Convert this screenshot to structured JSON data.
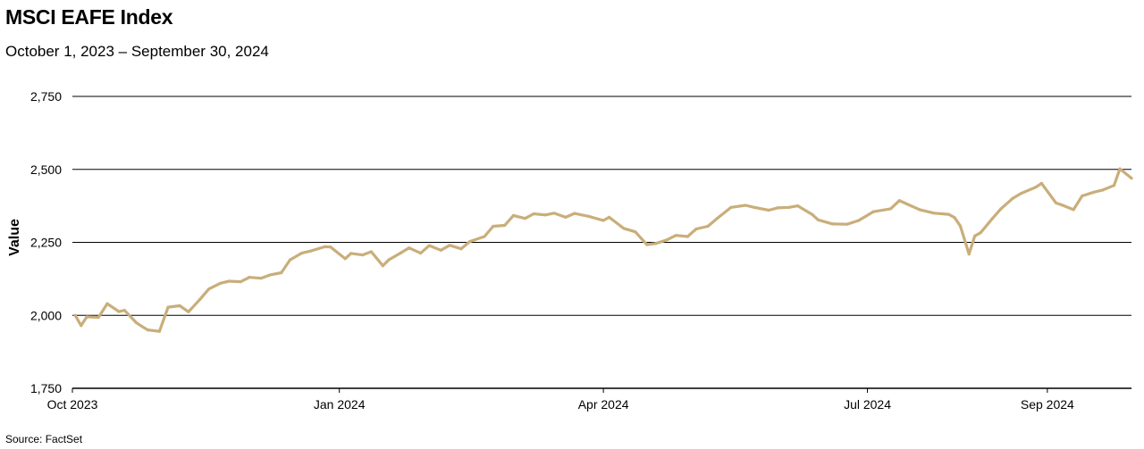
{
  "chart_data": {
    "type": "line",
    "title": "MSCI EAFE Index",
    "subtitle": "October 1, 2023 – September 30, 2024",
    "ylabel": "Value",
    "xlabel": "",
    "source": "Source: FactSet",
    "ylim": [
      1750,
      2750
    ],
    "y_ticks": [
      "1,750",
      "2,000",
      "2,250",
      "2,500",
      "2,750"
    ],
    "xlim": [
      "2023-10-01",
      "2024-09-30"
    ],
    "x_ticks": [
      {
        "date": "2023-10-01",
        "label": "Oct 2023"
      },
      {
        "date": "2024-01-01",
        "label": "Jan 2024"
      },
      {
        "date": "2024-04-01",
        "label": "Apr 2024"
      },
      {
        "date": "2024-07-01",
        "label": "Jul 2024"
      },
      {
        "date": "2024-09-01",
        "label": "Sep 2024"
      }
    ],
    "grid": "horizontal",
    "line_color": "#C9AE7A",
    "series": [
      {
        "x": [
          "2023-10-02",
          "2023-10-04",
          "2023-10-06",
          "2023-10-10",
          "2023-10-13",
          "2023-10-17",
          "2023-10-19",
          "2023-10-23",
          "2023-10-25",
          "2023-10-27",
          "2023-10-31",
          "2023-11-03",
          "2023-11-07",
          "2023-11-10",
          "2023-11-14",
          "2023-11-17",
          "2023-11-21",
          "2023-11-24",
          "2023-11-28",
          "2023-12-01",
          "2023-12-05",
          "2023-12-08",
          "2023-12-12",
          "2023-12-15",
          "2023-12-19",
          "2023-12-22",
          "2023-12-27",
          "2023-12-29",
          "2024-01-03",
          "2024-01-05",
          "2024-01-09",
          "2024-01-12",
          "2024-01-16",
          "2024-01-18",
          "2024-01-22",
          "2024-01-25",
          "2024-01-29",
          "2024-02-01",
          "2024-02-05",
          "2024-02-08",
          "2024-02-12",
          "2024-02-15",
          "2024-02-20",
          "2024-02-23",
          "2024-02-27",
          "2024-03-01",
          "2024-03-05",
          "2024-03-08",
          "2024-03-12",
          "2024-03-15",
          "2024-03-19",
          "2024-03-22",
          "2024-03-27",
          "2024-04-01",
          "2024-04-03",
          "2024-04-08",
          "2024-04-12",
          "2024-04-16",
          "2024-04-19",
          "2024-04-23",
          "2024-04-26",
          "2024-04-30",
          "2024-05-03",
          "2024-05-07",
          "2024-05-10",
          "2024-05-15",
          "2024-05-20",
          "2024-05-23",
          "2024-05-28",
          "2024-05-31",
          "2024-06-04",
          "2024-06-07",
          "2024-06-12",
          "2024-06-14",
          "2024-06-19",
          "2024-06-24",
          "2024-06-28",
          "2024-07-03",
          "2024-07-09",
          "2024-07-12",
          "2024-07-16",
          "2024-07-19",
          "2024-07-24",
          "2024-07-29",
          "2024-07-31",
          "2024-08-02",
          "2024-08-05",
          "2024-08-07",
          "2024-08-09",
          "2024-08-13",
          "2024-08-16",
          "2024-08-20",
          "2024-08-23",
          "2024-08-28",
          "2024-08-30",
          "2024-09-04",
          "2024-09-06",
          "2024-09-10",
          "2024-09-13",
          "2024-09-17",
          "2024-09-20",
          "2024-09-24",
          "2024-09-26",
          "2024-09-30"
        ],
        "values": [
          2000,
          1965,
          1995,
          1993,
          2040,
          2013,
          2017,
          1975,
          1962,
          1950,
          1945,
          2028,
          2033,
          2012,
          2055,
          2090,
          2110,
          2117,
          2115,
          2130,
          2127,
          2138,
          2146,
          2190,
          2213,
          2220,
          2235,
          2234,
          2194,
          2212,
          2207,
          2218,
          2170,
          2190,
          2213,
          2231,
          2213,
          2239,
          2223,
          2240,
          2228,
          2253,
          2270,
          2305,
          2308,
          2342,
          2332,
          2348,
          2344,
          2350,
          2336,
          2349,
          2339,
          2325,
          2336,
          2298,
          2286,
          2242,
          2246,
          2259,
          2274,
          2270,
          2296,
          2305,
          2330,
          2370,
          2377,
          2370,
          2360,
          2368,
          2370,
          2375,
          2345,
          2327,
          2313,
          2312,
          2325,
          2355,
          2365,
          2393,
          2375,
          2362,
          2350,
          2346,
          2335,
          2306,
          2210,
          2272,
          2283,
          2331,
          2365,
          2400,
          2418,
          2439,
          2452,
          2385,
          2378,
          2362,
          2409,
          2422,
          2429,
          2445,
          2502,
          2470
        ]
      }
    ]
  }
}
